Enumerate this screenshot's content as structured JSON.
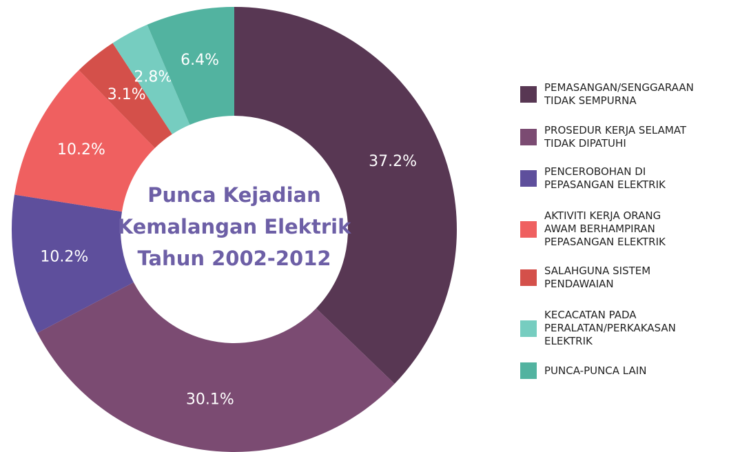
{
  "chart_data": {
    "type": "donut",
    "title": [
      "Punca Kejadian",
      "Kemalangan Elektrik",
      "Tahun 2002-2012"
    ],
    "categories": [
      "PEMASANGAN/SENGGARAAN\nTIDAK SEMPURNA",
      "PROSEDUR KERJA SELAMAT\nTIDAK DIPATUHI",
      "PENCEROBOHAN DI\nPEPASANGAN ELEKTRIK",
      "AKTIVITI KERJA ORANG\nAWAM BERHAMPIRAN\nPEPASANGAN ELEKTRIK",
      "SALAHGUNA SISTEM\nPENDAWAIAN",
      "KECACATAN PADA\nPERALATAN/PERKAKASAN\nELEKTRIK",
      "PUNCA-PUNCA LAIN"
    ],
    "values": [
      37.2,
      30.1,
      10.2,
      10.2,
      3.1,
      2.8,
      6.4
    ],
    "value_labels": [
      "37.2%",
      "30.1%",
      "10.2%",
      "10.2%",
      "3.1%",
      "2.8%",
      "6.4%"
    ],
    "colors": [
      "#583753",
      "#7b4b72",
      "#5e4f9c",
      "#ef6060",
      "#d4504a",
      "#76cdc0",
      "#52b3a0"
    ],
    "legend": "right"
  }
}
